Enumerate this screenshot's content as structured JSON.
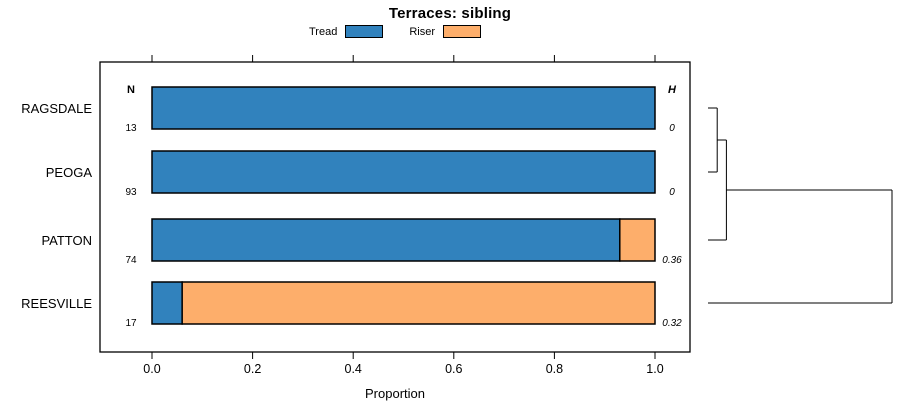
{
  "chart_data": {
    "type": "bar",
    "orientation": "horizontal",
    "title": "Terraces: sibling",
    "xlabel": "Proportion",
    "xlim": [
      0,
      1
    ],
    "xticks": [
      0.0,
      0.2,
      0.4,
      0.6,
      0.8,
      1.0
    ],
    "grid": false,
    "legend_position": "top",
    "legend": [
      {
        "label": "Tread",
        "color": "#3182bd"
      },
      {
        "label": "Riser",
        "color": "#fdae6b"
      }
    ],
    "column_headers": {
      "left": "N",
      "right": "H"
    },
    "categories": [
      "RAGSDALE",
      "PEOGA",
      "PATTON",
      "REESVILLE"
    ],
    "series": [
      {
        "name": "Tread",
        "values": [
          1.0,
          1.0,
          0.93,
          0.06
        ]
      },
      {
        "name": "Riser",
        "values": [
          0.0,
          0.0,
          0.07,
          0.94
        ]
      }
    ],
    "rows": [
      {
        "label": "RAGSDALE",
        "n": "13",
        "h": "0",
        "tread": 1.0,
        "riser": 0.0
      },
      {
        "label": "PEOGA",
        "n": "93",
        "h": "0",
        "tread": 1.0,
        "riser": 0.0
      },
      {
        "label": "PATTON",
        "n": "74",
        "h": "0.36",
        "tread": 0.93,
        "riser": 0.07
      },
      {
        "label": "REESVILLE",
        "n": "17",
        "h": "0.32",
        "tread": 0.06,
        "riser": 0.94
      }
    ],
    "dendrogram": {
      "merges": [
        {
          "a": 0,
          "b": 1,
          "height": 0.05
        },
        {
          "a": "m0",
          "b": 2,
          "height": 0.1
        },
        {
          "a": "m1",
          "b": 3,
          "height": 1.0
        }
      ]
    },
    "colors": {
      "bar_border": "#000000",
      "axis": "#000000",
      "text": "#000000"
    }
  }
}
